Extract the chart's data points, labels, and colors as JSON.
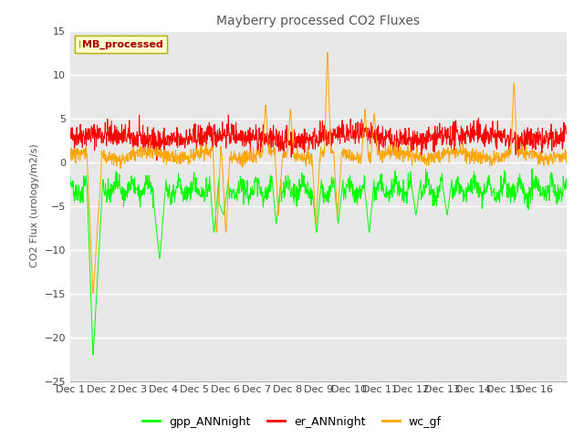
{
  "title": "Mayberry processed CO2 Fluxes",
  "ylabel": "CO2 Flux (urology/m2/s)",
  "ylim": [
    -25,
    15
  ],
  "yticks": [
    -25,
    -20,
    -15,
    -10,
    -5,
    0,
    5,
    10,
    15
  ],
  "n_points": 1500,
  "legend_label": "MB_processed",
  "series_labels": [
    "gpp_ANNnight",
    "er_ANNnight",
    "wc_gf"
  ],
  "colors": {
    "gpp_ANNnight": "#00FF00",
    "er_ANNnight": "#FF0000",
    "wc_gf": "#FFA500"
  },
  "background_color": "#FFFFFF",
  "plot_bg_color": "#E8E8E8",
  "n_days": 16,
  "xtick_labels": [
    "Dec 1",
    "Dec 2",
    "Dec 3",
    "Dec 4",
    "Dec 5",
    "Dec 6",
    "Dec 7",
    "Dec 8",
    "Dec 9",
    "Dec 10",
    "Dec 11",
    "Dec 12",
    "Dec 13",
    "Dec 14",
    "Dec 15",
    "Dec 16"
  ]
}
